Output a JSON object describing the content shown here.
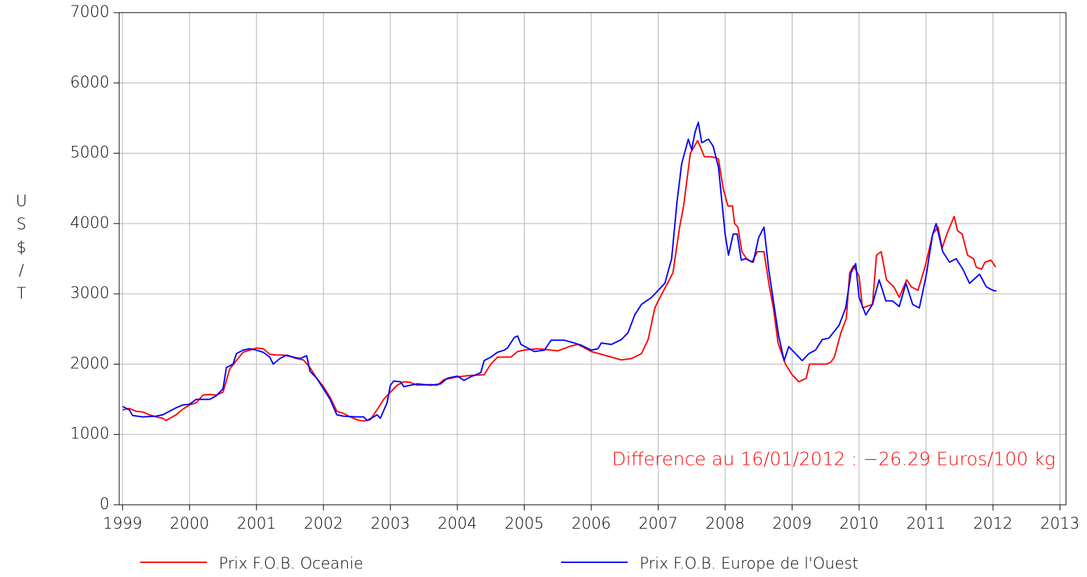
{
  "chart_data": {
    "type": "line",
    "ylabel": "US$/T",
    "annotation": "Difference au 16/01/2012 : −26.29 Euros/100 kg",
    "annotation_color": "#ff0000",
    "xlim": [
      1998.95,
      2013.09
    ],
    "xticks": [
      1999,
      2000,
      2001,
      2002,
      2003,
      2004,
      2005,
      2006,
      2007,
      2008,
      2009,
      2010,
      2011,
      2012,
      2013
    ],
    "ylim": [
      0,
      7000
    ],
    "yticks": [
      0,
      1000,
      2000,
      3000,
      4000,
      5000,
      6000,
      7000
    ],
    "grid": true,
    "legend": "bottom",
    "series": [
      {
        "name": "Prix F.O.B. Oceanie",
        "color": "#ff0000",
        "x": [
          1999.0,
          1999.1,
          1999.2,
          1999.3,
          1999.4,
          1999.5,
          1999.6,
          1999.65,
          1999.8,
          1999.9,
          2000.0,
          2000.1,
          2000.2,
          2000.3,
          2000.4,
          2000.5,
          2000.6,
          2000.7,
          2000.8,
          2000.9,
          2001.0,
          2001.1,
          2001.2,
          2001.3,
          2001.4,
          2001.5,
          2001.6,
          2001.7,
          2001.8,
          2001.9,
          2002.0,
          2002.1,
          2002.2,
          2002.3,
          2002.4,
          2002.5,
          2002.6,
          2002.7,
          2002.8,
          2002.9,
          2003.0,
          2003.1,
          2003.2,
          2003.3,
          2003.4,
          2003.6,
          2003.7,
          2003.8,
          2004.0,
          2004.2,
          2004.4,
          2004.5,
          2004.6,
          2004.8,
          2004.9,
          2005.0,
          2005.2,
          2005.4,
          2005.5,
          2005.7,
          2005.8,
          2006.0,
          2006.3,
          2006.45,
          2006.6,
          2006.75,
          2006.85,
          2006.95,
          2007.0,
          2007.22,
          2007.32,
          2007.38,
          2007.48,
          2007.59,
          2007.69,
          2007.8,
          2007.9,
          2007.97,
          2008.04,
          2008.11,
          2008.14,
          2008.19,
          2008.25,
          2008.32,
          2008.4,
          2008.48,
          2008.58,
          2008.66,
          2008.72,
          2008.79,
          2008.9,
          2009.0,
          2009.1,
          2009.21,
          2009.26,
          2009.52,
          2009.58,
          2009.63,
          2009.73,
          2009.81,
          2009.86,
          2009.92,
          2010.0,
          2010.05,
          2010.2,
          2010.26,
          2010.33,
          2010.41,
          2010.52,
          2010.6,
          2010.71,
          2010.78,
          2010.88,
          2010.99,
          2011.1,
          2011.18,
          2011.24,
          2011.31,
          2011.42,
          2011.47,
          2011.54,
          2011.62,
          2011.71,
          2011.75,
          2011.83,
          2011.88,
          2011.97,
          2012.04
        ],
        "values": [
          1350,
          1370,
          1330,
          1320,
          1280,
          1250,
          1230,
          1200,
          1280,
          1360,
          1420,
          1450,
          1560,
          1570,
          1560,
          1600,
          1930,
          2050,
          2170,
          2200,
          2230,
          2220,
          2140,
          2130,
          2130,
          2110,
          2080,
          2060,
          1950,
          1800,
          1680,
          1530,
          1330,
          1300,
          1250,
          1210,
          1190,
          1210,
          1350,
          1500,
          1600,
          1700,
          1750,
          1740,
          1700,
          1710,
          1700,
          1780,
          1820,
          1840,
          1850,
          2000,
          2100,
          2100,
          2180,
          2200,
          2220,
          2200,
          2190,
          2260,
          2280,
          2180,
          2100,
          2060,
          2080,
          2150,
          2350,
          2800,
          2900,
          3300,
          3950,
          4250,
          5000,
          5180,
          4950,
          4950,
          4920,
          4500,
          4250,
          4250,
          4000,
          3950,
          3600,
          3500,
          3450,
          3600,
          3600,
          3100,
          2800,
          2300,
          2000,
          1850,
          1750,
          1800,
          2000,
          2000,
          2030,
          2100,
          2450,
          2650,
          3300,
          3400,
          3250,
          2800,
          2850,
          3550,
          3600,
          3200,
          3100,
          2950,
          3200,
          3100,
          3050,
          3400,
          3850,
          3950,
          3650,
          3850,
          4100,
          3900,
          3850,
          3550,
          3500,
          3380,
          3350,
          3450,
          3480,
          3380
        ]
      },
      {
        "name": "Prix F.O.B. Europe de l'Ouest",
        "color": "#0000ff",
        "x": [
          1999.0,
          1999.1,
          1999.15,
          1999.3,
          1999.5,
          1999.6,
          1999.7,
          1999.8,
          1999.9,
          2000.0,
          2000.1,
          2000.3,
          2000.4,
          2000.5,
          2000.55,
          2000.65,
          2000.7,
          2000.8,
          2000.9,
          2001.0,
          2001.1,
          2001.2,
          2001.25,
          2001.35,
          2001.45,
          2001.55,
          2001.65,
          2001.75,
          2001.8,
          2001.9,
          2002.0,
          2002.1,
          2002.2,
          2002.3,
          2002.5,
          2002.6,
          2002.65,
          2002.75,
          2002.8,
          2002.85,
          2002.95,
          2003.0,
          2003.05,
          2003.15,
          2003.2,
          2003.3,
          2003.4,
          2003.6,
          2003.75,
          2003.85,
          2004.0,
          2004.1,
          2004.2,
          2004.35,
          2004.4,
          2004.5,
          2004.6,
          2004.7,
          2004.75,
          2004.85,
          2004.9,
          2004.95,
          2005.05,
          2005.15,
          2005.3,
          2005.4,
          2005.6,
          2005.75,
          2005.85,
          2006.0,
          2006.1,
          2006.15,
          2006.3,
          2006.45,
          2006.55,
          2006.65,
          2006.75,
          2006.9,
          2007.0,
          2007.1,
          2007.2,
          2007.28,
          2007.35,
          2007.45,
          2007.5,
          2007.55,
          2007.6,
          2007.65,
          2007.75,
          2007.82,
          2007.9,
          2008.0,
          2008.05,
          2008.12,
          2008.18,
          2008.24,
          2008.3,
          2008.42,
          2008.5,
          2008.58,
          2008.65,
          2008.72,
          2008.8,
          2008.88,
          2008.95,
          2009.05,
          2009.15,
          2009.25,
          2009.35,
          2009.45,
          2009.55,
          2009.7,
          2009.8,
          2009.88,
          2009.95,
          2010.0,
          2010.1,
          2010.2,
          2010.3,
          2010.4,
          2010.5,
          2010.6,
          2010.7,
          2010.8,
          2010.9,
          2011.0,
          2011.1,
          2011.15,
          2011.25,
          2011.35,
          2011.45,
          2011.55,
          2011.65,
          2011.8,
          2011.9,
          2012.0,
          2012.05
        ],
        "values": [
          1400,
          1350,
          1270,
          1250,
          1260,
          1280,
          1330,
          1380,
          1420,
          1430,
          1500,
          1500,
          1550,
          1650,
          1950,
          2000,
          2150,
          2200,
          2220,
          2200,
          2170,
          2100,
          2000,
          2080,
          2130,
          2100,
          2080,
          2120,
          1900,
          1800,
          1650,
          1500,
          1280,
          1260,
          1250,
          1250,
          1200,
          1250,
          1280,
          1230,
          1450,
          1700,
          1760,
          1750,
          1680,
          1700,
          1720,
          1700,
          1720,
          1800,
          1830,
          1770,
          1820,
          1880,
          2050,
          2100,
          2170,
          2200,
          2230,
          2380,
          2400,
          2280,
          2230,
          2180,
          2200,
          2340,
          2340,
          2300,
          2270,
          2200,
          2220,
          2300,
          2280,
          2350,
          2450,
          2700,
          2850,
          2950,
          3050,
          3150,
          3500,
          4300,
          4850,
          5200,
          5050,
          5300,
          5440,
          5150,
          5200,
          5100,
          4800,
          3850,
          3550,
          3850,
          3850,
          3480,
          3500,
          3450,
          3800,
          3950,
          3350,
          2900,
          2400,
          2050,
          2250,
          2150,
          2050,
          2150,
          2200,
          2350,
          2370,
          2550,
          2800,
          3300,
          3430,
          2950,
          2700,
          2850,
          3200,
          2900,
          2900,
          2820,
          3150,
          2850,
          2800,
          3250,
          3850,
          4000,
          3600,
          3450,
          3500,
          3350,
          3150,
          3280,
          3100,
          3050,
          3040
        ]
      }
    ]
  }
}
